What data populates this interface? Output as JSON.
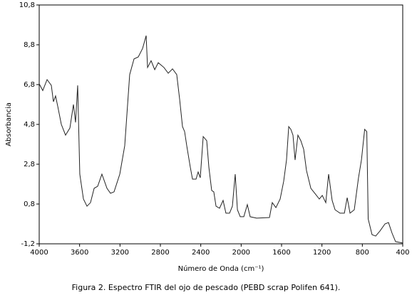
{
  "chart_data": {
    "type": "line",
    "caption": "Figura 2. Espectro FTIR del ojo de pescado (PEBD scrap Polifen 641).",
    "xlabel": "Número de Onda (cm⁻¹)",
    "ylabel": "Absorbancia",
    "xlim": [
      4000,
      400
    ],
    "ylim": [
      -1.2,
      10.8
    ],
    "xticks": [
      4000,
      3600,
      3200,
      2800,
      2400,
      2000,
      1600,
      1200,
      800,
      400
    ],
    "yticks": [
      {
        "value": -1.2,
        "label": "-1,2"
      },
      {
        "value": 0.8,
        "label": "0,8"
      },
      {
        "value": 2.8,
        "label": "2,8"
      },
      {
        "value": 4.8,
        "label": "4,8"
      },
      {
        "value": 6.8,
        "label": "6,8"
      },
      {
        "value": 8.8,
        "label": "8,8"
      },
      {
        "value": 10.8,
        "label": "10,8"
      }
    ],
    "grid": false,
    "series": [
      {
        "color": "#222222",
        "x": [
          4000,
          3965,
          3922,
          3880,
          3859,
          3838,
          3816,
          3781,
          3739,
          3696,
          3661,
          3640,
          3619,
          3598,
          3562,
          3527,
          3492,
          3456,
          3421,
          3379,
          3329,
          3294,
          3259,
          3202,
          3153,
          3104,
          3061,
          3019,
          2976,
          2941,
          2927,
          2892,
          2856,
          2821,
          2765,
          2722,
          2680,
          2638,
          2609,
          2581,
          2560,
          2539,
          2504,
          2482,
          2447,
          2426,
          2405,
          2376,
          2341,
          2320,
          2292,
          2271,
          2249,
          2214,
          2179,
          2151,
          2115,
          2087,
          2059,
          2037,
          2009,
          1974,
          1939,
          1911,
          1847,
          1720,
          1692,
          1656,
          1614,
          1579,
          1551,
          1529,
          1508,
          1487,
          1466,
          1438,
          1409,
          1381,
          1353,
          1310,
          1254,
          1226,
          1197,
          1162,
          1134,
          1099,
          1070,
          1021,
          978,
          950,
          922,
          880,
          838,
          809,
          777,
          756,
          742,
          704,
          668,
          626,
          576,
          541,
          506,
          471,
          400
        ],
        "values": [
          6.84,
          6.5,
          7.05,
          6.76,
          5.94,
          6.23,
          5.7,
          4.8,
          4.26,
          4.62,
          5.8,
          4.9,
          6.76,
          2.3,
          1.05,
          0.69,
          0.87,
          1.59,
          1.69,
          2.3,
          1.59,
          1.34,
          1.41,
          2.3,
          3.73,
          7.3,
          8.09,
          8.19,
          8.62,
          9.26,
          7.66,
          8.0,
          7.55,
          7.9,
          7.66,
          7.37,
          7.59,
          7.3,
          6.05,
          4.69,
          4.44,
          3.73,
          2.66,
          2.05,
          2.05,
          2.41,
          2.12,
          4.19,
          3.98,
          2.66,
          1.48,
          1.41,
          0.69,
          0.59,
          0.98,
          0.34,
          0.34,
          0.69,
          2.3,
          0.51,
          0.16,
          0.16,
          0.77,
          0.16,
          0.09,
          0.12,
          0.87,
          0.62,
          1.05,
          1.94,
          3.01,
          4.69,
          4.55,
          4.26,
          3.01,
          4.26,
          3.98,
          3.55,
          2.48,
          1.59,
          1.23,
          1.05,
          1.23,
          0.87,
          2.3,
          0.98,
          0.51,
          0.34,
          0.34,
          1.12,
          0.34,
          0.51,
          2.12,
          3.01,
          4.55,
          4.44,
          0.05,
          -0.74,
          -0.81,
          -0.56,
          -0.2,
          -0.13,
          -0.66,
          -1.09,
          -1.16
        ]
      }
    ]
  }
}
